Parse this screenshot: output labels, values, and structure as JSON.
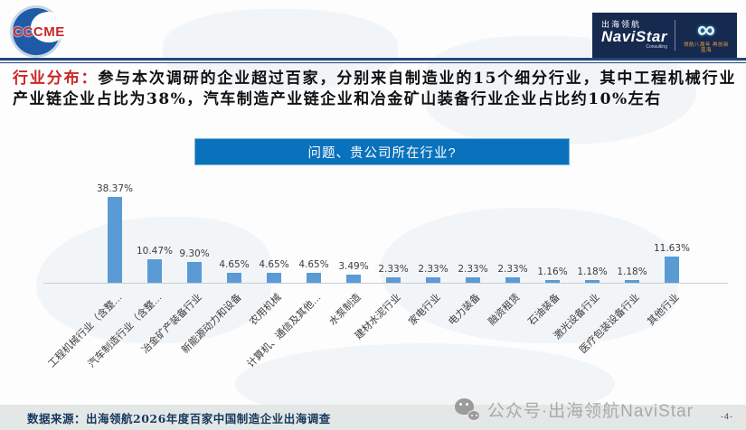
{
  "header": {
    "cccme_text": "CCCME",
    "navistar": {
      "cn": "出海领航",
      "en": "NaviStar",
      "sub": "Consulting",
      "infinity_icon": "∞",
      "anniversary": "领航八周年 再创新蓝海"
    }
  },
  "intro": {
    "label": "行业分布：",
    "body": "参与本次调研的企业超过百家，分别来自制造业的15个细分行业，其中工程机械行业产业链企业占比为38%，汽车制造产业链企业和冶金矿山装备行业企业占比约10%左右"
  },
  "chart_data": {
    "type": "bar",
    "title": "问题、贵公司所在行业?",
    "categories": [
      "工程机械行业（含整…",
      "汽车制造行业（含整…",
      "冶金矿产装备行业",
      "新能源动力和设备",
      "农用机械",
      "计算机、通信及其他…",
      "水泵制造",
      "建材水泥行业",
      "家电行业",
      "电力装备",
      "融资租赁",
      "石油装备",
      "激光设备行业",
      "医疗包装设备行业",
      "其他行业"
    ],
    "values": [
      38.37,
      10.47,
      9.3,
      4.65,
      4.65,
      4.65,
      3.49,
      2.33,
      2.33,
      2.33,
      2.33,
      1.16,
      1.18,
      1.18,
      11.63
    ],
    "data_labels": [
      "38.37%",
      "10.47%",
      "9.30%",
      "4.65%",
      "4.65%",
      "4.65%",
      "3.49%",
      "2.33%",
      "2.33%",
      "2.33%",
      "2.33%",
      "1.16%",
      "1.18%",
      "1.18%",
      "11.63%"
    ],
    "xlabel": "",
    "ylabel": "",
    "ylim": [
      0,
      40
    ],
    "grid": false,
    "legend": false,
    "bar_color": "#5b9bd5",
    "axis_color": "#c8cdd2"
  },
  "footer": {
    "source": "数据来源：出海领航2026年度百家中国制造企业出海调查",
    "wechat": "公众号·出海领航NaviStar",
    "page": "-4-"
  },
  "colors": {
    "title_bar_bg": "#0a72bc",
    "header_rule": "#24477b",
    "intro_label_red": "#cc2424",
    "navistar_bg": "#16294f",
    "footer_strip_bg": "#e3e8e6",
    "footer_text": "#17375e",
    "wechat_gray": "#a9a9a9",
    "cccme_red": "#c9252c",
    "cccme_blue": "#1e5aa6"
  }
}
